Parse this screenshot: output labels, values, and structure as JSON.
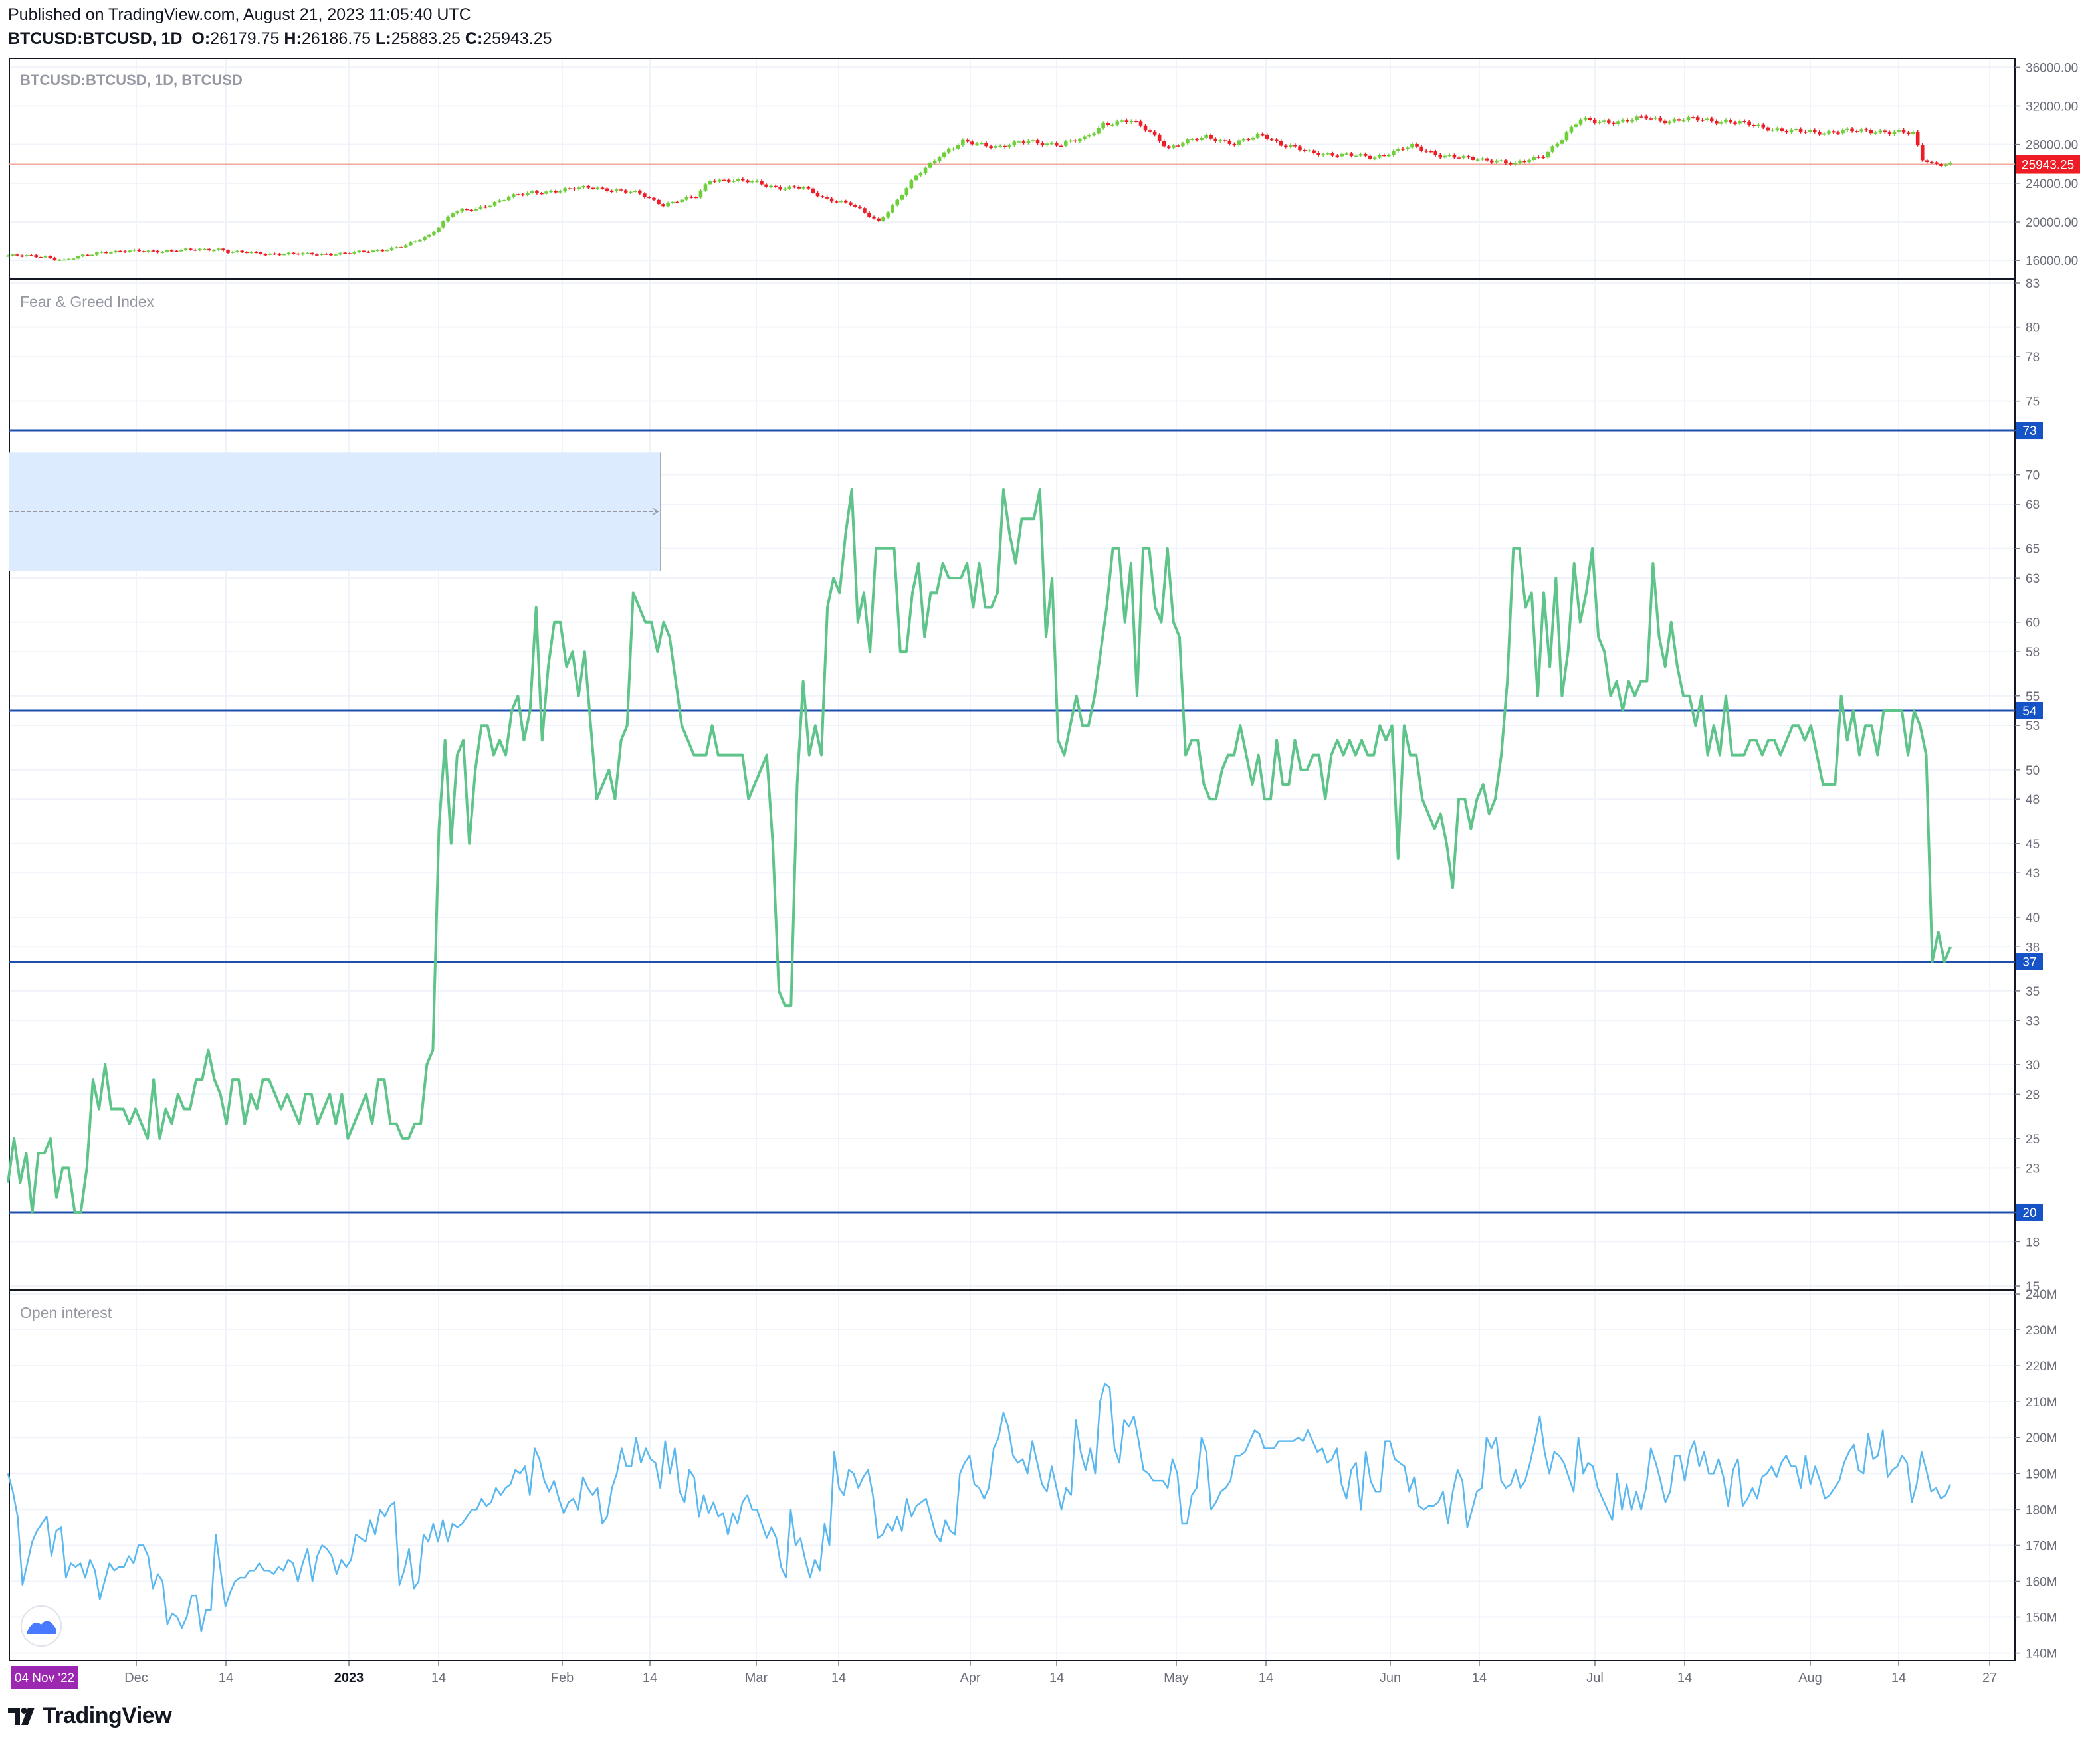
{
  "header": {
    "published": "Published on TradingView.com, August 21, 2023 11:05:40 UTC",
    "symbol": "BTCUSD:BTCUSD, 1D",
    "open_label": "O:",
    "open": "26179.75",
    "high_label": "H:",
    "high": "26186.75",
    "low_label": "L:",
    "low": "25883.25",
    "close_label": "C:",
    "close": "25943.25"
  },
  "footer": {
    "brand": "TradingView"
  },
  "colors": {
    "up": "#6fcf3b",
    "down": "#ee1c25",
    "fg_line": "#5ec48a",
    "oi_line": "#5ab8f0",
    "hline": "#1f4fad",
    "label_blue": "#1653c6",
    "price_tag": "#ee1c25",
    "date_tag": "#9c27b0",
    "box_fill": "#dcebfd",
    "price_hline": "#f3a89a"
  },
  "chart_data": [
    {
      "type": "candlestick",
      "title": "BTCUSD:BTCUSD, 1D, BTCUSD",
      "last_price": 25943.25,
      "ylim": [
        14500,
        36500
      ],
      "y_ticks": [
        "36000.00",
        "32000.00",
        "28000.00",
        "24000.00",
        "20000.00",
        "16000.00"
      ],
      "anchors": [
        [
          0,
          16500
        ],
        [
          8,
          16400
        ],
        [
          12,
          16000
        ],
        [
          20,
          16900
        ],
        [
          35,
          17000
        ],
        [
          45,
          17200
        ],
        [
          47,
          16900
        ],
        [
          55,
          16700
        ],
        [
          63,
          16650
        ],
        [
          72,
          16700
        ],
        [
          80,
          17100
        ],
        [
          85,
          17500
        ],
        [
          90,
          18600
        ],
        [
          95,
          21000
        ],
        [
          100,
          21300
        ],
        [
          107,
          22600
        ],
        [
          112,
          23000
        ],
        [
          125,
          23600
        ],
        [
          135,
          22900
        ],
        [
          140,
          21800
        ],
        [
          147,
          22600
        ],
        [
          150,
          24400
        ],
        [
          160,
          24100
        ],
        [
          165,
          23500
        ],
        [
          170,
          23500
        ],
        [
          175,
          22400
        ],
        [
          180,
          21800
        ],
        [
          186,
          20100
        ],
        [
          190,
          22200
        ],
        [
          194,
          24700
        ],
        [
          199,
          26900
        ],
        [
          204,
          28200
        ],
        [
          212,
          27800
        ],
        [
          218,
          28300
        ],
        [
          225,
          28000
        ],
        [
          230,
          28600
        ],
        [
          234,
          30200
        ],
        [
          240,
          30400
        ],
        [
          244,
          29400
        ],
        [
          248,
          27600
        ],
        [
          256,
          28900
        ],
        [
          262,
          28000
        ],
        [
          268,
          29100
        ],
        [
          272,
          28000
        ],
        [
          278,
          27200
        ],
        [
          285,
          26900
        ],
        [
          292,
          26700
        ],
        [
          300,
          27800
        ],
        [
          306,
          26900
        ],
        [
          312,
          26500
        ],
        [
          318,
          26400
        ],
        [
          322,
          25900
        ],
        [
          328,
          26900
        ],
        [
          332,
          28600
        ],
        [
          336,
          30600
        ],
        [
          345,
          30300
        ],
        [
          350,
          30900
        ],
        [
          355,
          30400
        ],
        [
          361,
          30700
        ],
        [
          365,
          30500
        ],
        [
          372,
          30100
        ],
        [
          380,
          29400
        ],
        [
          387,
          29300
        ],
        [
          393,
          29400
        ],
        [
          400,
          29400
        ],
        [
          404,
          29300
        ],
        [
          407,
          29100
        ],
        [
          409,
          26500
        ],
        [
          411,
          26100
        ],
        [
          415,
          25943
        ]
      ]
    },
    {
      "type": "line",
      "title": "Fear & Greed Index",
      "ylim": [
        15,
        83
      ],
      "y_ticks": [
        "83",
        "80",
        "78",
        "75",
        "73",
        "70",
        "68",
        "65",
        "63",
        "60",
        "58",
        "55",
        "53",
        "50",
        "48",
        "45",
        "43",
        "40",
        "38",
        "35",
        "33",
        "30",
        "28",
        "25",
        "23",
        "20",
        "18",
        "15"
      ],
      "levels": [
        73,
        54,
        37,
        20
      ],
      "level_labels": [
        "73",
        "54",
        "37",
        "20"
      ],
      "values": [
        22,
        25,
        22,
        24,
        20,
        24,
        24,
        25,
        21,
        23,
        23,
        20,
        20,
        23,
        29,
        27,
        30,
        27,
        27,
        27,
        26,
        27,
        26,
        25,
        29,
        25,
        27,
        26,
        28,
        27,
        27,
        29,
        29,
        31,
        29,
        28,
        26,
        29,
        29,
        26,
        28,
        27,
        29,
        29,
        28,
        27,
        28,
        27,
        26,
        28,
        28,
        26,
        27,
        28,
        26,
        28,
        25,
        26,
        27,
        28,
        26,
        29,
        29,
        26,
        26,
        25,
        25,
        26,
        26,
        30,
        31,
        46,
        52,
        45,
        51,
        52,
        45,
        50,
        53,
        53,
        51,
        52,
        51,
        54,
        55,
        52,
        54,
        61,
        52,
        57,
        60,
        60,
        57,
        58,
        55,
        58,
        53,
        48,
        49,
        50,
        48,
        52,
        53,
        62,
        61,
        60,
        60,
        58,
        60,
        59,
        56,
        53,
        52,
        51,
        51,
        51,
        53,
        51,
        51,
        51,
        51,
        51,
        48,
        49,
        50,
        51,
        45,
        35,
        34,
        34,
        49,
        56,
        51,
        53,
        51,
        61,
        63,
        62,
        66,
        69,
        60,
        62,
        58,
        65,
        65,
        65,
        65,
        58,
        58,
        62,
        64,
        59,
        62,
        62,
        64,
        63,
        63,
        63,
        64,
        61,
        64,
        61,
        61,
        62,
        69,
        66,
        64,
        67,
        67,
        67,
        69,
        59,
        63,
        52,
        51,
        53,
        55,
        53,
        53,
        55,
        58,
        61,
        65,
        65,
        60,
        64,
        55,
        65,
        65,
        61,
        60,
        65,
        60,
        59,
        51,
        52,
        52,
        49,
        48,
        48,
        50,
        51,
        51,
        53,
        51,
        49,
        51,
        48,
        48,
        52,
        49,
        49,
        52,
        50,
        50,
        51,
        51,
        48,
        51,
        52,
        51,
        52,
        51,
        52,
        51,
        51,
        53,
        52,
        53,
        44,
        53,
        51,
        51,
        48,
        47,
        46,
        47,
        45,
        42,
        48,
        48,
        46,
        48,
        49,
        47,
        48,
        51,
        56,
        65,
        65,
        61,
        62,
        55,
        62,
        57,
        63,
        55,
        58,
        64,
        60,
        62,
        65,
        59,
        58,
        55,
        56,
        54,
        56,
        55,
        56,
        56,
        64,
        59,
        57,
        60,
        57,
        55,
        55,
        53,
        55,
        51,
        53,
        51,
        55,
        51,
        51,
        51,
        52,
        52,
        51,
        52,
        52,
        51,
        52,
        53,
        53,
        52,
        53,
        51,
        49,
        49,
        49,
        55,
        52,
        54,
        51,
        53,
        53,
        51,
        54,
        54,
        54,
        54,
        51,
        54,
        53,
        51,
        37,
        39,
        37,
        38
      ]
    },
    {
      "type": "line",
      "title": "Open interest",
      "ylim": [
        139000000,
        240000000
      ],
      "y_ticks": [
        "240M",
        "230M",
        "220M",
        "210M",
        "200M",
        "190M",
        "180M",
        "170M",
        "160M",
        "150M",
        "140M"
      ],
      "values": [
        190,
        185,
        178,
        159,
        165,
        171,
        174,
        176,
        178,
        167,
        174,
        175,
        161,
        165,
        164,
        165,
        161,
        166,
        163,
        155,
        160,
        165,
        163,
        164,
        164,
        167,
        165,
        170,
        170,
        167,
        158,
        162,
        160,
        148,
        151,
        150,
        147,
        150,
        156,
        156,
        146,
        152,
        152,
        173,
        163,
        153,
        157,
        160,
        161,
        161,
        163,
        163,
        165,
        163,
        163,
        162,
        164,
        163,
        166,
        165,
        160,
        165,
        169,
        160,
        167,
        170,
        169,
        167,
        162,
        166,
        164,
        166,
        173,
        172,
        171,
        177,
        173,
        180,
        178,
        181,
        182,
        159,
        163,
        169,
        158,
        160,
        173,
        171,
        176,
        171,
        177,
        171,
        176,
        175,
        176,
        178,
        180,
        180,
        183,
        181,
        182,
        186,
        184,
        186,
        187,
        191,
        190,
        192,
        184,
        197,
        194,
        188,
        185,
        188,
        183,
        179,
        182,
        183,
        180,
        189,
        186,
        184,
        186,
        176,
        178,
        186,
        190,
        197,
        192,
        192,
        200,
        193,
        197,
        194,
        193,
        186,
        199,
        190,
        197,
        185,
        182,
        191,
        189,
        178,
        184,
        179,
        182,
        178,
        179,
        173,
        179,
        176,
        182,
        184,
        180,
        180,
        176,
        172,
        175,
        172,
        164,
        161,
        180,
        170,
        172,
        166,
        161,
        166,
        163,
        176,
        170,
        196,
        186,
        184,
        191,
        190,
        186,
        189,
        191,
        184,
        172,
        173,
        176,
        174,
        178,
        174,
        183,
        178,
        181,
        182,
        183,
        178,
        173,
        171,
        177,
        174,
        173,
        190,
        193,
        195,
        187,
        186,
        183,
        186,
        197,
        200,
        207,
        203,
        195,
        193,
        194,
        190,
        199,
        193,
        187,
        185,
        192,
        186,
        180,
        186,
        184,
        205,
        196,
        191,
        197,
        190,
        210,
        215,
        214,
        197,
        193,
        205,
        203,
        206,
        199,
        191,
        190,
        188,
        188,
        188,
        186,
        194,
        190,
        176,
        176,
        184,
        186,
        200,
        196,
        180,
        182,
        185,
        186,
        188,
        195,
        195,
        196,
        199,
        202,
        201,
        197,
        197,
        197,
        199,
        199,
        199,
        199,
        200,
        199,
        202,
        199,
        196,
        197,
        193,
        194,
        197,
        187,
        183,
        191,
        193,
        180,
        196,
        188,
        185,
        185,
        199,
        199,
        194,
        193,
        192,
        185,
        189,
        181,
        180,
        181,
        181,
        182,
        185,
        176,
        185,
        191,
        188,
        175,
        180,
        185,
        186,
        200,
        197,
        200,
        188,
        186,
        187,
        191,
        186,
        188,
        193,
        199,
        206,
        196,
        190,
        196,
        195,
        193,
        189,
        185,
        200,
        190,
        193,
        192,
        186,
        183,
        180,
        177,
        190,
        180,
        187,
        180,
        185,
        180,
        186,
        197,
        193,
        188,
        182,
        185,
        195,
        195,
        188,
        196,
        199,
        192,
        196,
        190,
        190,
        194,
        189,
        181,
        191,
        194,
        181,
        183,
        186,
        183,
        189,
        190,
        192,
        189,
        193,
        195,
        192,
        192,
        186,
        195,
        187,
        192,
        188,
        183,
        184,
        186,
        188,
        193,
        196,
        198,
        191,
        190,
        201,
        194,
        195,
        202,
        189,
        191,
        192,
        195,
        193,
        182,
        187,
        196,
        191,
        185,
        186,
        183,
        184,
        187
      ]
    }
  ],
  "time_axis": {
    "labels": [
      "04 Nov '22",
      "Dec",
      "14",
      "2023",
      "14",
      "Feb",
      "14",
      "Mar",
      "14",
      "Apr",
      "14",
      "May",
      "14",
      "Jun",
      "14",
      "Jul",
      "14",
      "Aug",
      "14",
      "27"
    ],
    "bold": [
      "2023"
    ],
    "start_label": "04 Nov '22"
  },
  "panes": {
    "price_title": "BTCUSD:BTCUSD, 1D, BTCUSD",
    "price_tag": "25943.25",
    "fg_title": "Fear & Greed Index",
    "oi_title": "Open interest"
  }
}
